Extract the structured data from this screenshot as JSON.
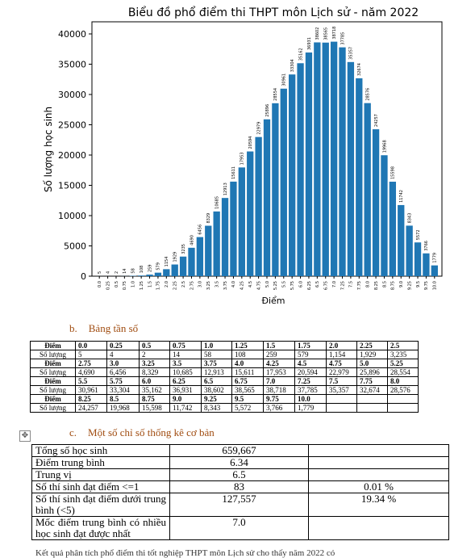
{
  "chart_data": {
    "type": "bar",
    "title": "Biểu đồ phổ điểm thi THPT môn Lịch sử - năm 2022",
    "xlabel": "Điểm",
    "ylabel": "Số lượng học sinh",
    "ylim": [
      0,
      42000
    ],
    "yticks": [
      0,
      5000,
      10000,
      15000,
      20000,
      25000,
      30000,
      35000,
      40000
    ],
    "categories": [
      "0.0",
      "0.25",
      "0.5",
      "0.75",
      "1.0",
      "1.25",
      "1.5",
      "1.75",
      "2.0",
      "2.25",
      "2.5",
      "2.75",
      "3.0",
      "3.25",
      "3.5",
      "3.75",
      "4.0",
      "4.25",
      "4.5",
      "4.75",
      "5.0",
      "5.25",
      "5.5",
      "5.75",
      "6.0",
      "6.25",
      "6.5",
      "6.75",
      "7.0",
      "7.25",
      "7.5",
      "7.75",
      "8.0",
      "8.25",
      "8.5",
      "8.75",
      "9.0",
      "9.25",
      "9.5",
      "9.75",
      "10.0"
    ],
    "values": [
      5,
      4,
      2,
      14,
      58,
      108,
      259,
      579,
      1154,
      1929,
      3235,
      4690,
      6456,
      8329,
      10685,
      12913,
      15611,
      17953,
      20594,
      22979,
      25896,
      28554,
      30961,
      33304,
      35162,
      36931,
      38602,
      38565,
      38718,
      37785,
      35357,
      32674,
      28576,
      24257,
      19968,
      15598,
      11742,
      8343,
      5572,
      3766,
      1779
    ],
    "bar_color": "#1f77b4",
    "grid": false
  },
  "section_b": {
    "num": "b.",
    "title": "Bảng tần số"
  },
  "freq_table": {
    "rows": [
      [
        "Điểm",
        "0.0",
        "0.25",
        "0.5",
        "0.75",
        "1.0",
        "1.25",
        "1.5",
        "1.75",
        "2.0",
        "2.25",
        "2.5"
      ],
      [
        "Số lượng",
        "5",
        "4",
        "2",
        "14",
        "58",
        "108",
        "259",
        "579",
        "1,154",
        "1,929",
        "3,235"
      ],
      [
        "Điểm",
        "2.75",
        "3.0",
        "3.25",
        "3.5",
        "3.75",
        "4.0",
        "4.25",
        "4.5",
        "4.75",
        "5.0",
        "5.25"
      ],
      [
        "Số lượng",
        "4,690",
        "6,456",
        "8,329",
        "10,685",
        "12,913",
        "15,611",
        "17,953",
        "20,594",
        "22,979",
        "25,896",
        "28,554"
      ],
      [
        "Điểm",
        "5.5",
        "5.75",
        "6.0",
        "6.25",
        "6.5",
        "6.75",
        "7.0",
        "7.25",
        "7.5",
        "7.75",
        "8.0"
      ],
      [
        "Số lượng",
        "30,961",
        "33,304",
        "35,162",
        "36,931",
        "38,602",
        "38,565",
        "38,718",
        "37,785",
        "35,357",
        "32,674",
        "28,576"
      ],
      [
        "Điểm",
        "8.25",
        "8.5",
        "8.75",
        "9.0",
        "9.25",
        "9.5",
        "9.75",
        "10.0",
        "",
        "",
        ""
      ],
      [
        "Số lượng",
        "24,257",
        "19,968",
        "15,598",
        "11,742",
        "8,343",
        "5,572",
        "3,766",
        "1,779",
        "",
        "",
        ""
      ]
    ]
  },
  "section_c": {
    "num": "c.",
    "title": "Một số chỉ số thống kê cơ bản"
  },
  "stats_table": {
    "rows": [
      [
        "Tổng số học sinh",
        "659,667",
        ""
      ],
      [
        "Điểm trung bình",
        "6.34",
        ""
      ],
      [
        "Trung vị",
        "6.5",
        ""
      ],
      [
        "Số thí sinh đạt điểm <=1",
        "83",
        "0.01 %"
      ],
      [
        "Số thí sinh đạt điểm dưới trung bình (<5)",
        "127,557",
        "19.34 %"
      ],
      [
        "Mốc điểm trung bình có nhiều học sinh đạt được nhất",
        "7.0",
        ""
      ]
    ]
  },
  "footer": {
    "text": "Kết quả phân tích phổ điểm thi tốt nghiệp THPT môn Lịch sử cho thấy năm 2022 có"
  },
  "icons": {
    "move_handle": "move-icon"
  }
}
